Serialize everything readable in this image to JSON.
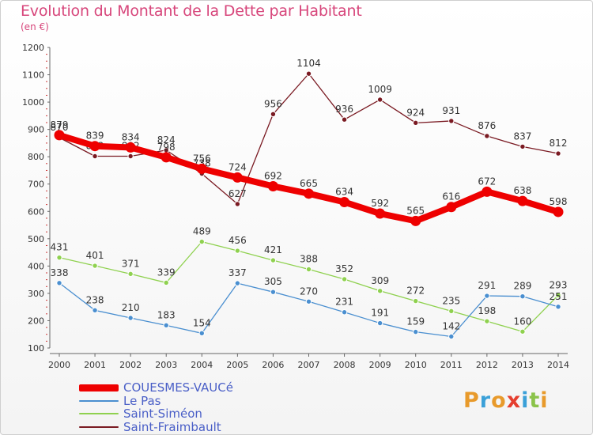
{
  "title": "Evolution du Montant de la Dette par Habitant",
  "unit": "(en €)",
  "brand": {
    "letters": [
      "P",
      "r",
      "o",
      "x",
      "i",
      "t",
      "i"
    ],
    "colors": [
      "#e89a2b",
      "#3aa0d8",
      "#e89a2b",
      "#e53e2e",
      "#3aa0d8",
      "#8bc34a",
      "#e89a2b"
    ]
  },
  "chart_data": {
    "type": "line",
    "categories": [
      "2000",
      "2001",
      "2002",
      "2003",
      "2004",
      "2005",
      "2006",
      "2007",
      "2008",
      "2009",
      "2010",
      "2011",
      "2012",
      "2013",
      "2014"
    ],
    "ylim": [
      100,
      1200
    ],
    "yticks": [
      100,
      200,
      300,
      400,
      500,
      600,
      700,
      800,
      900,
      1000,
      1100,
      1200
    ],
    "grid": false,
    "legend": "bottom-left",
    "series": [
      {
        "name": "Saint-Fraimbault",
        "color": "#7a1a22",
        "values": [
          870,
          802,
          802,
          824,
          738,
          627,
          956,
          1104,
          936,
          1009,
          924,
          931,
          876,
          837,
          812
        ],
        "labels": [
          "870",
          "802",
          "802",
          "824",
          "738",
          "627",
          "956",
          "1104",
          "936",
          "1009",
          "924",
          "931",
          "876",
          "837",
          "812"
        ]
      },
      {
        "name": "Saint-Siméon",
        "color": "#8fd14f",
        "values": [
          431,
          401,
          371,
          339,
          489,
          456,
          421,
          388,
          352,
          309,
          272,
          235,
          198,
          160,
          293
        ],
        "labels": [
          "431",
          "401",
          "371",
          "339",
          "489",
          "456",
          "421",
          "388",
          "352",
          "309",
          "272",
          "235",
          "198",
          "160",
          "293"
        ]
      },
      {
        "name": "Le Pas",
        "color": "#4a8fd0",
        "values": [
          338,
          238,
          210,
          183,
          154,
          337,
          305,
          270,
          231,
          191,
          159,
          142,
          291,
          289,
          251
        ],
        "labels": [
          "338",
          "238",
          "210",
          "183",
          "154",
          "337",
          "305",
          "270",
          "231",
          "191",
          "159",
          "142",
          "291",
          "289",
          "251"
        ]
      },
      {
        "name": "COUESMES-VAUCé",
        "color": "#ee0000",
        "values": [
          879,
          839,
          834,
          798,
          756,
          724,
          692,
          665,
          634,
          592,
          565,
          616,
          672,
          638,
          598
        ],
        "labels": [
          "879",
          "839",
          "834",
          "798",
          "756",
          "724",
          "692",
          "665",
          "634",
          "592",
          "565",
          "616",
          "672",
          "638",
          "598"
        ]
      }
    ],
    "legend_entries": [
      {
        "name": "COUESMES-VAUCé",
        "color": "#ee0000"
      },
      {
        "name": "Le Pas",
        "color": "#4a8fd0"
      },
      {
        "name": "Saint-Siméon",
        "color": "#8fd14f"
      },
      {
        "name": "Saint-Fraimbault",
        "color": "#7a1a22"
      }
    ]
  }
}
